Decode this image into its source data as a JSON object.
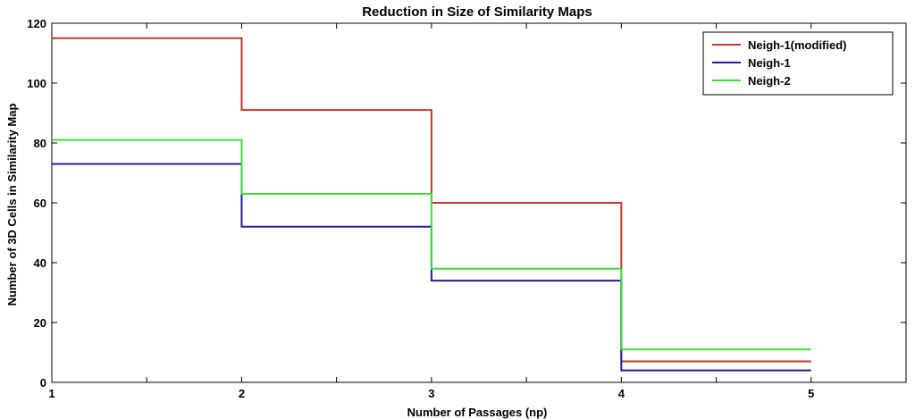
{
  "chart_data": {
    "type": "line",
    "style": "step",
    "title": "Reduction in Size of Similarity Maps",
    "xlabel": "Number of Passages (np)",
    "ylabel": "Number of 3D Cells in Similarity Map",
    "xlim": [
      1,
      5.5
    ],
    "ylim": [
      0,
      120
    ],
    "xticks": [
      1,
      2,
      3,
      4,
      5
    ],
    "yticks": [
      0,
      20,
      40,
      60,
      80,
      100,
      120
    ],
    "grid": false,
    "legend_position": "top-right",
    "series": [
      {
        "name": "Neigh-1(modified)",
        "color": "#c0392b",
        "x": [
          1,
          2,
          3,
          4,
          5
        ],
        "values": [
          115,
          91,
          60,
          7,
          7
        ]
      },
      {
        "name": "Neigh-1",
        "color": "#1f1f9e",
        "x": [
          1,
          2,
          3,
          4,
          5
        ],
        "values": [
          73,
          52,
          34,
          4,
          4
        ]
      },
      {
        "name": "Neigh-2",
        "color": "#3ddc3d",
        "x": [
          1,
          2,
          3,
          4,
          5
        ],
        "values": [
          81,
          63,
          38,
          11,
          11
        ]
      }
    ]
  }
}
